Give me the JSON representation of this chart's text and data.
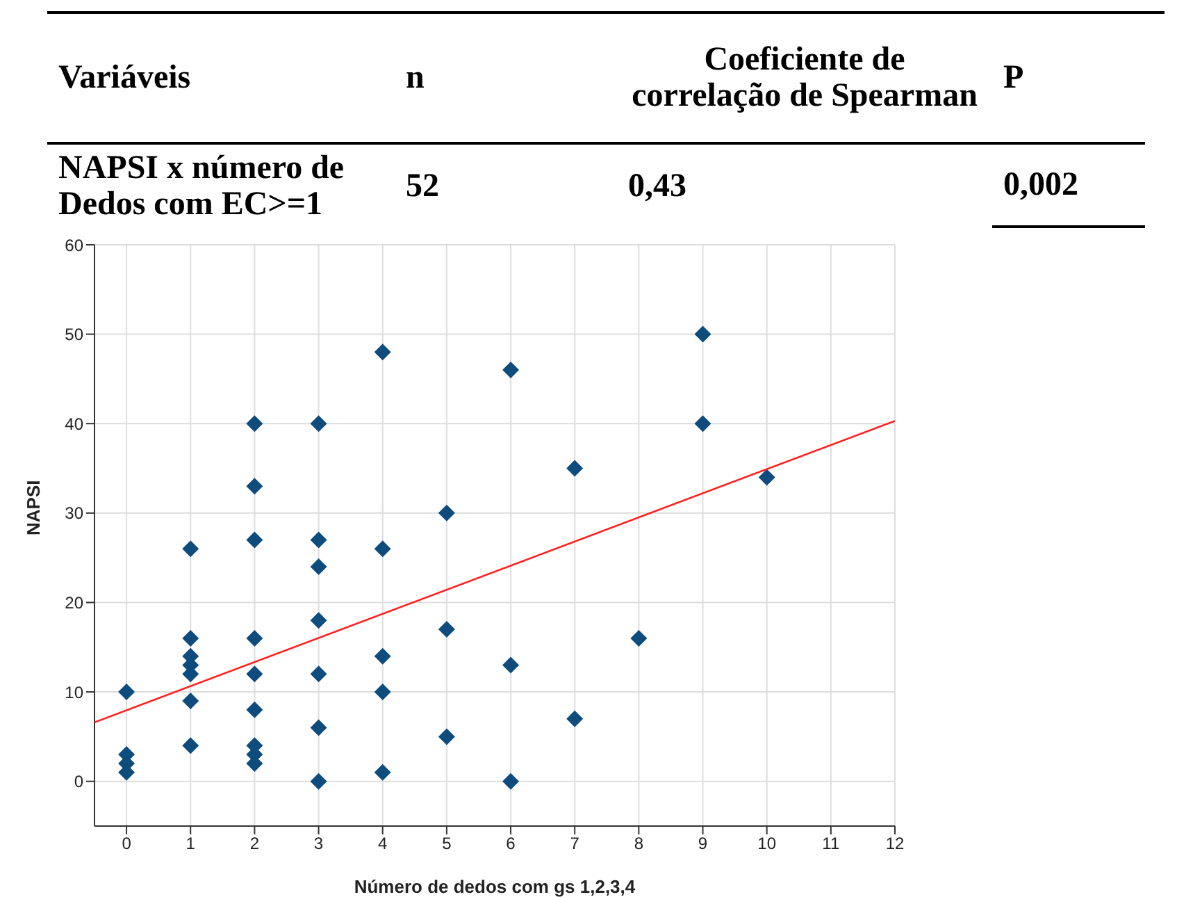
{
  "chart_data": {
    "type": "scatter",
    "xlabel": "Número de dedos com gs 1,2,3,4",
    "ylabel": "NAPSI",
    "annotations": [
      "Variáveis",
      "n",
      "Coeficiente de correlação de Spearman",
      "P",
      "NAPSI x número de Dedos com EC>=1",
      "52",
      "0,43",
      "0,002"
    ],
    "xlim": [
      -0.5,
      12
    ],
    "ylim": [
      -5,
      60
    ],
    "xticks": [
      0,
      1,
      2,
      3,
      4,
      5,
      6,
      7,
      8,
      9,
      10,
      11,
      12
    ],
    "yticks": [
      0,
      10,
      20,
      30,
      40,
      50,
      60
    ],
    "grid": true,
    "marker": "diamond",
    "series": [
      {
        "color": "#0e4c7e",
        "x": [
          0,
          0,
          0,
          0,
          1,
          1,
          1,
          1,
          1,
          1,
          1,
          2,
          2,
          2,
          2,
          2,
          2,
          2,
          2,
          2,
          3,
          3,
          3,
          3,
          3,
          3,
          3,
          4,
          4,
          4,
          4,
          4,
          5,
          5,
          5,
          6,
          6,
          6,
          7,
          7,
          8,
          9,
          9,
          10
        ],
        "values": [
          10,
          3,
          2,
          1,
          26,
          16,
          14,
          13,
          12,
          9,
          4,
          40,
          33,
          27,
          16,
          12,
          8,
          4,
          3,
          2,
          40,
          27,
          24,
          18,
          12,
          6,
          0,
          48,
          26,
          14,
          10,
          1,
          30,
          17,
          5,
          46,
          13,
          0,
          35,
          7,
          16,
          50,
          40,
          34
        ]
      },
      {
        "type": "line",
        "color": "#ff2020",
        "marker": "none",
        "x": [
          -0.5,
          12
        ],
        "values": [
          6.6,
          40.3
        ]
      }
    ]
  }
}
